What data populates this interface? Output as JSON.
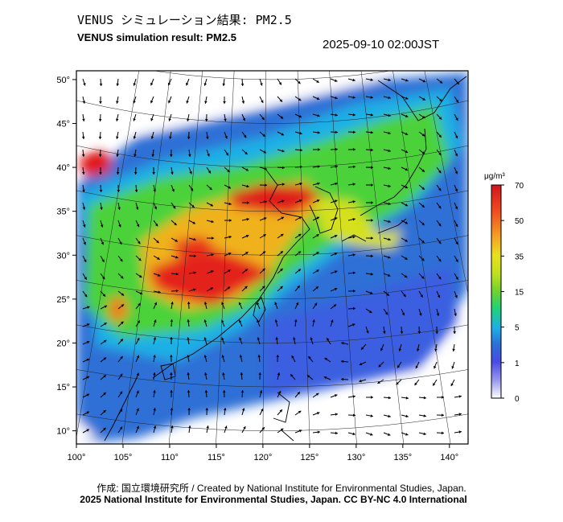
{
  "header": {
    "title_ja": "VENUS シミュレーション結果: PM2.5",
    "title_en": "VENUS simulation result: PM2.5",
    "timestamp": "2025-09-10 02:00JST"
  },
  "footer": {
    "credit": "作成: 国立環境研究所 / Created by National Institute for Environmental Studies, Japan.",
    "copyright": "2025 National Institute for Environmental Studies, Japan. CC BY-NC 4.0 International"
  },
  "colorbar": {
    "unit": "μg/m³",
    "ticks": [
      "70",
      "50",
      "35",
      "15",
      "5",
      "1",
      "0"
    ],
    "colors": [
      "#d2141e",
      "#f04a1e",
      "#f5a623",
      "#e8e01e",
      "#6cd22d",
      "#1fd27a",
      "#1cb0e6",
      "#2a6fd8",
      "#4a4ae6",
      "#9c9cf0",
      "#ffffff"
    ]
  },
  "chart_data": {
    "type": "heatmap",
    "title": "VENUS simulation result: PM2.5",
    "xlabel": "",
    "ylabel": "",
    "x_ticks": [
      "100°",
      "105°",
      "110°",
      "115°",
      "120°",
      "125°",
      "130°",
      "135°",
      "140°"
    ],
    "y_ticks": [
      "10°",
      "15°",
      "20°",
      "25°",
      "30°",
      "35°",
      "40°",
      "45°",
      "50°"
    ],
    "xlim": [
      100,
      142
    ],
    "ylim": [
      8.5,
      51
    ],
    "grid": true,
    "colorscale_levels": [
      0,
      1,
      5,
      15,
      35,
      50,
      70
    ],
    "hotspots": [
      {
        "lon": 118,
        "lat": 36,
        "value": 65
      },
      {
        "lon": 120,
        "lat": 36.5,
        "value": 60
      },
      {
        "lon": 110,
        "lat": 28,
        "value": 62
      },
      {
        "lon": 113,
        "lat": 30,
        "value": 55
      },
      {
        "lon": 115,
        "lat": 27.5,
        "value": 50
      },
      {
        "lon": 102,
        "lat": 40,
        "value": 70
      },
      {
        "lon": 104,
        "lat": 24,
        "value": 40
      }
    ]
  }
}
